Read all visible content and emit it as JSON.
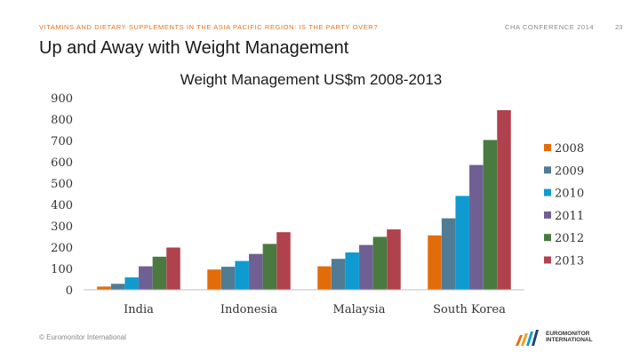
{
  "header": {
    "left_text": "VITAMINS AND DIETARY SUPPLEMENTS IN THE ASIA PACIFIC REGION: IS THE PARTY OVER?",
    "right_text": "CHA CONFERENCE 2014",
    "page_number": "23"
  },
  "page_title": "Up and Away with Weight Management",
  "footer": {
    "copyright": "© Euromonitor International"
  },
  "logo": {
    "line1": "EUROMONITOR",
    "line2": "INTERNATIONAL"
  },
  "colors": {
    "header_accent": "#e8701a"
  },
  "chart_data": {
    "type": "bar",
    "title": "Weight Management US$m 2008-2013",
    "xlabel": "",
    "ylabel": "",
    "ylim": [
      0,
      900
    ],
    "yticks": [
      0,
      100,
      200,
      300,
      400,
      500,
      600,
      700,
      800,
      900
    ],
    "grid": false,
    "legend_position": "right",
    "categories": [
      "India",
      "Indonesia",
      "Malaysia",
      "South Korea"
    ],
    "series": [
      {
        "name": "2008",
        "color": "#e36c0a",
        "values": [
          15,
          95,
          110,
          255
        ]
      },
      {
        "name": "2009",
        "color": "#4f7c94",
        "values": [
          28,
          108,
          145,
          335
        ]
      },
      {
        "name": "2010",
        "color": "#0f9bd0",
        "values": [
          58,
          135,
          175,
          440
        ]
      },
      {
        "name": "2011",
        "color": "#6f5f93",
        "values": [
          110,
          168,
          210,
          585
        ]
      },
      {
        "name": "2012",
        "color": "#4a7a3f",
        "values": [
          155,
          215,
          248,
          702
        ]
      },
      {
        "name": "2013",
        "color": "#b0424d",
        "values": [
          198,
          270,
          283,
          842
        ]
      }
    ]
  }
}
